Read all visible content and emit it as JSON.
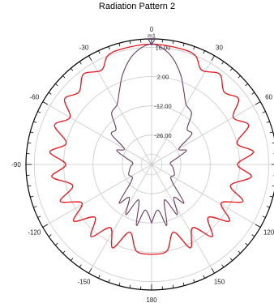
{
  "chart_data": {
    "type": "polar",
    "title": "Radiation Pattern 2",
    "angle_ticks": [
      {
        "angle": 0,
        "label": "0"
      },
      {
        "angle": 30,
        "label": "30"
      },
      {
        "angle": 60,
        "label": "60"
      },
      {
        "angle": 90,
        "label": "90"
      },
      {
        "angle": 120,
        "label": "120"
      },
      {
        "angle": 150,
        "label": "150"
      },
      {
        "angle": 180,
        "label": "180"
      },
      {
        "angle": -150,
        "label": "-150"
      },
      {
        "angle": -120,
        "label": "-120"
      },
      {
        "angle": -90,
        "label": "-90"
      },
      {
        "angle": -60,
        "label": "-60"
      },
      {
        "angle": -30,
        "label": "-30"
      }
    ],
    "radial_ticks": [
      {
        "value": 16.0,
        "label": "16.00"
      },
      {
        "value": 2.0,
        "label": "2.00"
      },
      {
        "value": -12.0,
        "label": "-12.00"
      },
      {
        "value": -26.0,
        "label": "-26.00"
      }
    ],
    "rlim": [
      -40,
      20
    ],
    "grid": true,
    "marker": {
      "label": "m1",
      "angle": 0,
      "value": 17.5,
      "color": "#5a2d6e"
    },
    "series": [
      {
        "color": "#e8141c",
        "points": [
          [
            -180,
            3
          ],
          [
            -170,
            2
          ],
          [
            -162,
            -6
          ],
          [
            -155,
            4
          ],
          [
            -147,
            -4
          ],
          [
            -140,
            5
          ],
          [
            -133,
            -3
          ],
          [
            -126,
            6
          ],
          [
            -119,
            -2
          ],
          [
            -112,
            7
          ],
          [
            -105,
            -1
          ],
          [
            -97,
            8
          ],
          [
            -90,
            1
          ],
          [
            -83,
            9
          ],
          [
            -76,
            2
          ],
          [
            -68,
            10
          ],
          [
            -60,
            5
          ],
          [
            -53,
            12
          ],
          [
            -45,
            9
          ],
          [
            -37,
            14
          ],
          [
            -28,
            11
          ],
          [
            -22,
            16
          ],
          [
            -14,
            17
          ],
          [
            0,
            17.5
          ],
          [
            14,
            17
          ],
          [
            22,
            16
          ],
          [
            28,
            11
          ],
          [
            37,
            14
          ],
          [
            45,
            9
          ],
          [
            53,
            12
          ],
          [
            60,
            5
          ],
          [
            68,
            10
          ],
          [
            76,
            2
          ],
          [
            83,
            9
          ],
          [
            90,
            1
          ],
          [
            97,
            8
          ],
          [
            105,
            -1
          ],
          [
            112,
            7
          ],
          [
            119,
            -2
          ],
          [
            126,
            6
          ],
          [
            133,
            -3
          ],
          [
            140,
            5
          ],
          [
            147,
            -4
          ],
          [
            155,
            4
          ],
          [
            162,
            -6
          ],
          [
            170,
            2
          ],
          [
            180,
            3
          ]
        ]
      },
      {
        "color": "#6b3a5e",
        "points": [
          [
            -180,
            -12
          ],
          [
            -172,
            -18
          ],
          [
            -166,
            -10
          ],
          [
            -160,
            -22
          ],
          [
            -153,
            -13
          ],
          [
            -146,
            -21
          ],
          [
            -140,
            -16
          ],
          [
            -132,
            -26
          ],
          [
            -124,
            -29
          ],
          [
            -115,
            -28
          ],
          [
            -105,
            -29
          ],
          [
            -95,
            -30
          ],
          [
            -85,
            -31
          ],
          [
            -75,
            -27
          ],
          [
            -68,
            -22
          ],
          [
            -60,
            -25
          ],
          [
            -53,
            -16
          ],
          [
            -45,
            -16
          ],
          [
            -38,
            -9
          ],
          [
            -30,
            -7
          ],
          [
            -24,
            -2
          ],
          [
            -18,
            5
          ],
          [
            -11,
            12
          ],
          [
            -5,
            16
          ],
          [
            0,
            17.5
          ],
          [
            5,
            16
          ],
          [
            11,
            12
          ],
          [
            18,
            5
          ],
          [
            24,
            -2
          ],
          [
            30,
            -7
          ],
          [
            38,
            -9
          ],
          [
            45,
            -16
          ],
          [
            53,
            -16
          ],
          [
            60,
            -25
          ],
          [
            68,
            -22
          ],
          [
            75,
            -27
          ],
          [
            85,
            -31
          ],
          [
            95,
            -30
          ],
          [
            105,
            -29
          ],
          [
            115,
            -28
          ],
          [
            124,
            -29
          ],
          [
            132,
            -26
          ],
          [
            140,
            -16
          ],
          [
            146,
            -21
          ],
          [
            153,
            -13
          ],
          [
            160,
            -22
          ],
          [
            166,
            -10
          ],
          [
            172,
            -18
          ],
          [
            180,
            -12
          ]
        ]
      }
    ]
  }
}
